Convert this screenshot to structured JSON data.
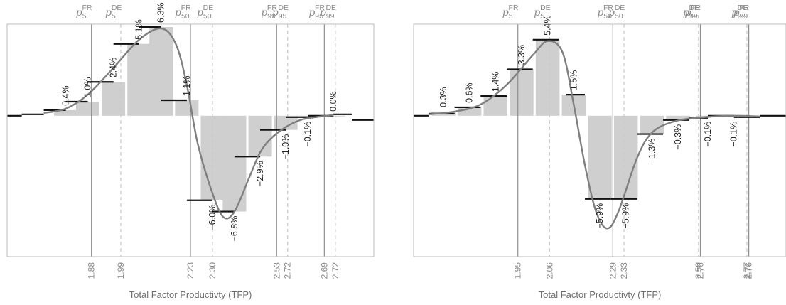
{
  "chart_data": [
    {
      "type": "bar",
      "xlabel": "Total Factor Productivty (TFP)",
      "ylim": [
        -10,
        6.5
      ],
      "bars": [
        {
          "x": 0.16,
          "value": 0.4,
          "label": "0.4%"
        },
        {
          "x": 0.22,
          "value": 1.0,
          "label": "1.0%"
        },
        {
          "x": 0.29,
          "value": 2.4,
          "label": "2.4%"
        },
        {
          "x": 0.36,
          "value": 5.1,
          "label": "5.1%"
        },
        {
          "x": 0.42,
          "value": 6.3,
          "label": "6.3%"
        },
        {
          "x": 0.49,
          "value": 1.1,
          "label": "1.1%"
        },
        {
          "x": 0.56,
          "value": -6.0,
          "label": "−6.0%"
        },
        {
          "x": 0.62,
          "value": -6.8,
          "label": "−6.8%"
        },
        {
          "x": 0.69,
          "value": -2.9,
          "label": "−2.9%"
        },
        {
          "x": 0.76,
          "value": -1.0,
          "label": "−1.0%"
        },
        {
          "x": 0.82,
          "value": -0.1,
          "label": "−0.1%"
        },
        {
          "x": 0.89,
          "value": 0.0,
          "label": "0.0%"
        }
      ],
      "steps": [
        {
          "x0": 0.0,
          "x1": 0.04,
          "value": 0.0
        },
        {
          "x0": 0.04,
          "x1": 0.1,
          "value": 0.1
        },
        {
          "x0": 0.1,
          "x1": 0.16,
          "value": 0.4
        },
        {
          "x0": 0.16,
          "x1": 0.22,
          "value": 1.0
        },
        {
          "x0": 0.22,
          "x1": 0.29,
          "value": 2.4
        },
        {
          "x0": 0.29,
          "x1": 0.36,
          "value": 5.1
        },
        {
          "x0": 0.36,
          "x1": 0.42,
          "value": 6.3
        },
        {
          "x0": 0.42,
          "x1": 0.49,
          "value": 1.1
        },
        {
          "x0": 0.49,
          "x1": 0.56,
          "value": -6.0
        },
        {
          "x0": 0.56,
          "x1": 0.62,
          "value": -6.8
        },
        {
          "x0": 0.62,
          "x1": 0.69,
          "value": -2.9
        },
        {
          "x0": 0.69,
          "x1": 0.76,
          "value": -1.0
        },
        {
          "x0": 0.76,
          "x1": 0.82,
          "value": -0.1
        },
        {
          "x0": 0.82,
          "x1": 0.89,
          "value": 0.0
        },
        {
          "x0": 0.89,
          "x1": 0.94,
          "value": 0.1
        },
        {
          "x0": 0.94,
          "x1": 1.0,
          "value": -0.3
        }
      ],
      "curve": [
        [
          0.1,
          0.2
        ],
        [
          0.16,
          0.5
        ],
        [
          0.22,
          1.5
        ],
        [
          0.29,
          3.4
        ],
        [
          0.36,
          5.4
        ],
        [
          0.42,
          6.2
        ],
        [
          0.46,
          5.1
        ],
        [
          0.49,
          2.2
        ],
        [
          0.52,
          -2.0
        ],
        [
          0.56,
          -5.5
        ],
        [
          0.59,
          -7.2
        ],
        [
          0.62,
          -6.8
        ],
        [
          0.66,
          -4.4
        ],
        [
          0.69,
          -2.6
        ],
        [
          0.72,
          -1.6
        ],
        [
          0.76,
          -0.8
        ],
        [
          0.8,
          -0.3
        ],
        [
          0.84,
          -0.1
        ],
        [
          0.89,
          0.05
        ]
      ],
      "percentiles": [
        {
          "x": 0.23,
          "base": "p",
          "sub": "5",
          "sup": "FR",
          "tick": "1.88",
          "country": "FR"
        },
        {
          "x": 0.31,
          "base": "p",
          "sub": "5",
          "sup": "DE",
          "tick": "1.99",
          "country": "DE"
        },
        {
          "x": 0.5,
          "base": "p",
          "sub": "50",
          "sup": "FR",
          "tick": "2.23",
          "country": "FR"
        },
        {
          "x": 0.56,
          "base": "p",
          "sub": "50",
          "sup": "DE",
          "tick": "2.30",
          "country": "DE"
        },
        {
          "x": 0.735,
          "base": "p",
          "sub": "99",
          "sup": "FR",
          "tick": "2.53",
          "country": "FR"
        },
        {
          "x": 0.765,
          "base": "p",
          "sub": "95",
          "sup": "DE",
          "tick": "2.72",
          "country": "DE"
        },
        {
          "x": 0.865,
          "base": "p",
          "sub": "95",
          "sup": "FR",
          "tick": "2.69",
          "country": "FR"
        },
        {
          "x": 0.895,
          "base": "p",
          "sub": "99",
          "sup": "DE",
          "tick": "2.72",
          "country": "DE"
        }
      ]
    },
    {
      "type": "bar",
      "xlabel": "Total Factor Productivty (TFP)",
      "ylim": [
        -10,
        6.5
      ],
      "bars": [
        {
          "x": 0.08,
          "value": 0.3,
          "label": "0.3%"
        },
        {
          "x": 0.15,
          "value": 0.6,
          "label": "0.6%"
        },
        {
          "x": 0.22,
          "value": 1.4,
          "label": "1.4%"
        },
        {
          "x": 0.29,
          "value": 3.3,
          "label": "3.3%"
        },
        {
          "x": 0.36,
          "value": 5.4,
          "label": "5.4%"
        },
        {
          "x": 0.43,
          "value": 1.5,
          "label": "1.5%"
        },
        {
          "x": 0.5,
          "value": -5.9,
          "label": "−5.9%"
        },
        {
          "x": 0.57,
          "value": -5.9,
          "label": "−5.9%"
        },
        {
          "x": 0.64,
          "value": -1.3,
          "label": "−1.3%"
        },
        {
          "x": 0.71,
          "value": -0.3,
          "label": "−0.3%"
        },
        {
          "x": 0.79,
          "value": -0.1,
          "label": "−0.1%"
        },
        {
          "x": 0.86,
          "value": -0.1,
          "label": "−0.1%"
        }
      ],
      "steps": [
        {
          "x0": 0.0,
          "x1": 0.04,
          "value": 0.0
        },
        {
          "x0": 0.04,
          "x1": 0.11,
          "value": 0.15
        },
        {
          "x0": 0.11,
          "x1": 0.18,
          "value": 0.6
        },
        {
          "x0": 0.18,
          "x1": 0.25,
          "value": 1.4
        },
        {
          "x0": 0.25,
          "x1": 0.32,
          "value": 3.3
        },
        {
          "x0": 0.32,
          "x1": 0.39,
          "value": 5.4
        },
        {
          "x0": 0.41,
          "x1": 0.46,
          "value": 1.5
        },
        {
          "x0": 0.46,
          "x1": 0.53,
          "value": -5.9
        },
        {
          "x0": 0.53,
          "x1": 0.6,
          "value": -5.9
        },
        {
          "x0": 0.6,
          "x1": 0.67,
          "value": -1.3
        },
        {
          "x0": 0.67,
          "x1": 0.74,
          "value": -0.3
        },
        {
          "x0": 0.74,
          "x1": 0.79,
          "value": -0.15
        },
        {
          "x0": 0.79,
          "x1": 0.86,
          "value": 0.0
        },
        {
          "x0": 0.86,
          "x1": 0.93,
          "value": -0.1
        },
        {
          "x0": 0.93,
          "x1": 1.0,
          "value": 0.0
        }
      ],
      "curve": [
        [
          0.04,
          0.1
        ],
        [
          0.11,
          0.3
        ],
        [
          0.18,
          0.8
        ],
        [
          0.25,
          2.2
        ],
        [
          0.32,
          4.3
        ],
        [
          0.36,
          5.3
        ],
        [
          0.4,
          4.5
        ],
        [
          0.43,
          0.8
        ],
        [
          0.46,
          -3.5
        ],
        [
          0.49,
          -6.8
        ],
        [
          0.52,
          -8.0
        ],
        [
          0.55,
          -6.8
        ],
        [
          0.6,
          -3.0
        ],
        [
          0.64,
          -1.2
        ],
        [
          0.7,
          -0.4
        ],
        [
          0.78,
          -0.1
        ],
        [
          0.86,
          0.0
        ],
        [
          0.93,
          -0.05
        ]
      ],
      "percentiles": [
        {
          "x": 0.28,
          "base": "p",
          "sub": "5",
          "sup": "FR",
          "tick": "1.95",
          "country": "FR"
        },
        {
          "x": 0.365,
          "base": "p",
          "sub": "5",
          "sup": "DE",
          "tick": "2.06",
          "country": "DE"
        },
        {
          "x": 0.535,
          "base": "p",
          "sub": "50",
          "sup": "FR",
          "tick": "2.29",
          "country": "FR"
        },
        {
          "x": 0.565,
          "base": "p",
          "sub": "50",
          "sup": "DE",
          "tick": "2.33",
          "country": "DE"
        },
        {
          "x": 0.765,
          "base": "p",
          "sub": "99",
          "sup": "DE",
          "tick": "2.59",
          "country": "DE"
        },
        {
          "x": 0.77,
          "base": "p",
          "sub": "95",
          "sup": "FR",
          "tick": "2.76",
          "country": "FR"
        },
        {
          "x": 0.895,
          "base": "p",
          "sub": "99",
          "sup": "DE",
          "tick": "2.77",
          "country": "DE"
        },
        {
          "x": 0.9,
          "base": "p",
          "sub": "99",
          "sup": "FR",
          "tick": "2.76",
          "country": "FR"
        }
      ]
    }
  ]
}
